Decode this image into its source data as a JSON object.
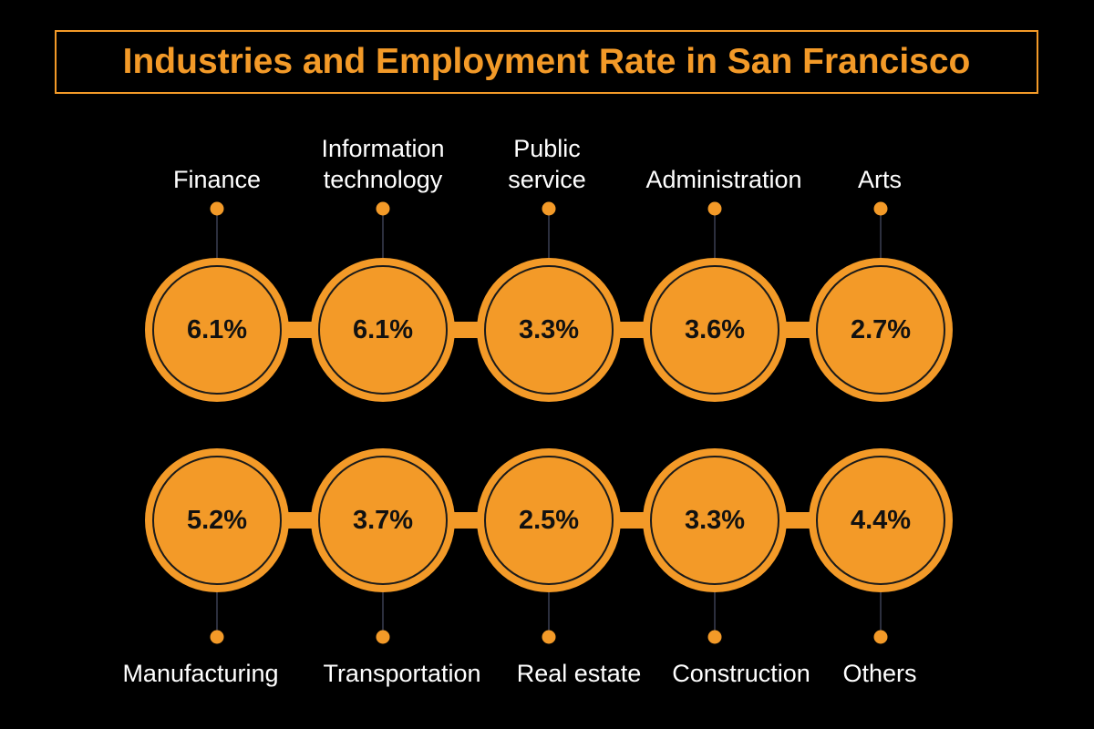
{
  "title": "Industries and Employment Rate in San Francisco",
  "colors": {
    "background": "#000000",
    "accent": "#f39a28",
    "ring": "#1a1a1a",
    "connector_line": "#3a3f52",
    "value_text": "#111111",
    "label_text": "#ffffff"
  },
  "top_row": [
    {
      "label": "Finance",
      "value": "6.1%"
    },
    {
      "label": "Information\ntechnology",
      "value": "6.1%"
    },
    {
      "label": "Public\nservice",
      "value": "3.3%"
    },
    {
      "label": "Administration",
      "value": "3.6%"
    },
    {
      "label": "Arts",
      "value": "2.7%"
    }
  ],
  "bottom_row": [
    {
      "label": "Manufacturing",
      "value": "5.2%"
    },
    {
      "label": "Transportation",
      "value": "3.7%"
    },
    {
      "label": "Real estate",
      "value": "2.5%"
    },
    {
      "label": "Construction",
      "value": "3.3%"
    },
    {
      "label": "Others",
      "value": "4.4%"
    }
  ]
}
